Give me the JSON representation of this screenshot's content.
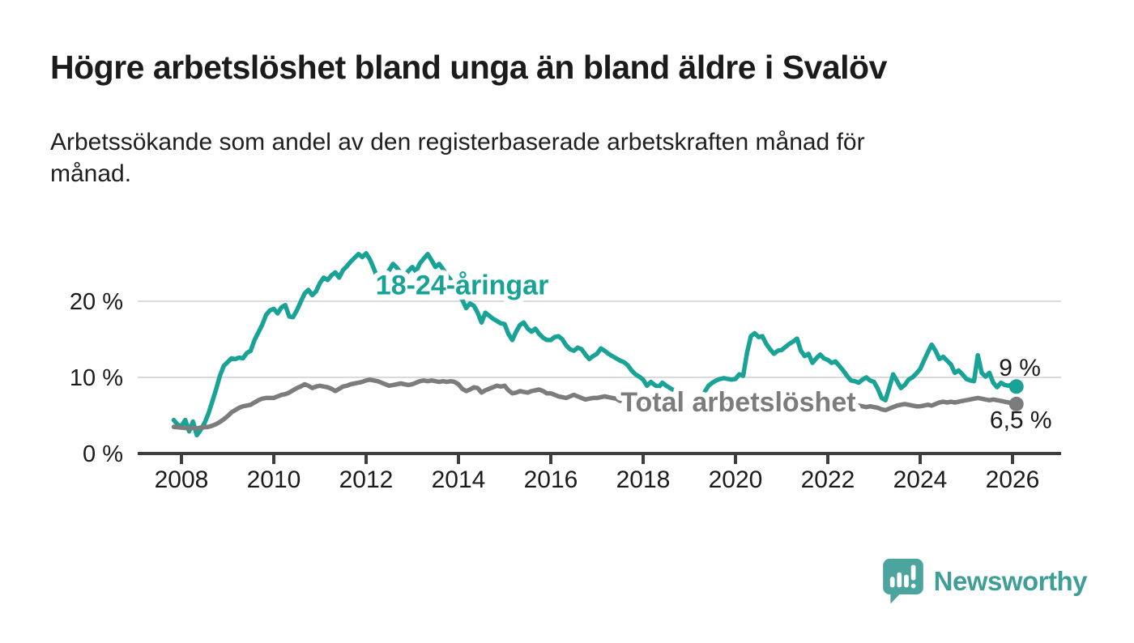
{
  "title": "Högre arbetslöshet bland unga än bland äldre i Svalöv",
  "subtitle_lines": [
    "Arbetssökande som andel av den registerbaserade arbetskraften månad för",
    "månad."
  ],
  "branding": {
    "name": "Newsworthy",
    "icon": "bar-chart-speech-bubble-icon",
    "bubble_color": "#4ba49d",
    "text_color": "#3f9e96"
  },
  "chart_data": {
    "type": "line",
    "x_unit": "year-month",
    "x_start": 2007.8333,
    "x_step": 0.0833333,
    "x_ticks": [
      2008,
      2010,
      2012,
      2014,
      2016,
      2018,
      2020,
      2022,
      2024,
      2026
    ],
    "y_ticks": [
      {
        "value": 0,
        "label": "0 %"
      },
      {
        "value": 10,
        "label": "10 %"
      },
      {
        "value": 20,
        "label": "20 %"
      }
    ],
    "ylim": [
      0,
      27.5
    ],
    "grid": "horizontal",
    "axis_color": "#3d3d3d",
    "grid_color": "#dadada",
    "tick_label_color": "#1b1b1b",
    "series": [
      {
        "name": "18-24-åringar",
        "color": "#18a396",
        "end_label": "9 %",
        "inline_label": {
          "text": "18-24-åringar",
          "year": 2014.08,
          "pct": 22.1
        },
        "end_label_pos": {
          "year": 2026.16,
          "pct": 11.3
        },
        "values": [
          4.4,
          3.8,
          3.6,
          4.4,
          2.9,
          4.2,
          2.4,
          3.1,
          4.0,
          5.2,
          6.8,
          8.4,
          10.2,
          11.5,
          12.0,
          12.5,
          12.4,
          12.6,
          12.5,
          13.2,
          13.5,
          14.9,
          15.9,
          16.9,
          18.2,
          18.8,
          19.0,
          18.4,
          19.2,
          19.5,
          18.0,
          17.9,
          18.8,
          19.9,
          21.0,
          21.5,
          20.8,
          21.3,
          22.4,
          23.1,
          22.8,
          23.4,
          23.8,
          23.1,
          24.1,
          24.6,
          25.2,
          25.7,
          26.2,
          25.8,
          26.3,
          25.5,
          24.3,
          23.0,
          22.3,
          23.4,
          24.1,
          24.9,
          24.4,
          23.7,
          23.3,
          24.0,
          24.5,
          23.9,
          25.0,
          25.6,
          26.2,
          25.4,
          24.5,
          24.9,
          24.2,
          23.4,
          22.8,
          21.6,
          20.7,
          20.2,
          19.1,
          19.7,
          19.4,
          18.5,
          17.2,
          18.5,
          18.1,
          17.7,
          17.4,
          17.1,
          17.0,
          15.7,
          14.9,
          16.0,
          16.9,
          17.2,
          16.4,
          16.0,
          16.4,
          15.7,
          15.2,
          14.9,
          14.9,
          15.3,
          15.4,
          15.0,
          14.2,
          13.7,
          13.5,
          13.9,
          13.7,
          13.0,
          12.4,
          12.8,
          13.1,
          13.8,
          13.5,
          13.1,
          12.8,
          12.5,
          12.2,
          12.0,
          11.6,
          10.9,
          10.4,
          10.1,
          9.7,
          8.9,
          9.4,
          9.0,
          8.7,
          9.3,
          8.9,
          8.6,
          8.3,
          8.5,
          8.2,
          8.1,
          null,
          null,
          null,
          null,
          8.1,
          8.9,
          9.3,
          9.6,
          9.8,
          9.9,
          9.8,
          9.7,
          9.8,
          10.4,
          10.2,
          13.2,
          15.4,
          15.8,
          15.3,
          15.4,
          14.4,
          13.7,
          13.1,
          13.5,
          13.6,
          14.0,
          14.4,
          14.7,
          15.1,
          13.5,
          12.8,
          13.1,
          11.9,
          12.5,
          13.0,
          12.5,
          12.3,
          11.9,
          12.1,
          11.5,
          10.9,
          10.2,
          9.6,
          9.5,
          9.3,
          9.7,
          10.0,
          9.6,
          9.4,
          8.5,
          7.3,
          7.0,
          8.7,
          10.4,
          9.5,
          8.6,
          9.0,
          9.7,
          10.0,
          10.5,
          11.1,
          12.2,
          13.3,
          14.3,
          13.5,
          12.4,
          12.7,
          12.2,
          11.7,
          10.6,
          10.9,
          10.4,
          9.8,
          9.6,
          9.5,
          12.9,
          10.6,
          10.1,
          10.6,
          9.3,
          8.7,
          9.3,
          9.0,
          8.9,
          9.1,
          8.8
        ]
      },
      {
        "name": "Total arbetslöshet",
        "color": "#7c7c7c",
        "end_label": "6,5 %",
        "inline_label": {
          "text": "Total arbetslöshet",
          "year": 2020.06,
          "pct": 6.7
        },
        "end_label_pos": {
          "year": 2026.18,
          "pct": 4.4
        },
        "values": [
          3.5,
          3.45,
          3.4,
          3.35,
          3.3,
          3.35,
          3.3,
          3.4,
          3.45,
          3.5,
          3.65,
          3.85,
          4.15,
          4.5,
          4.9,
          5.4,
          5.7,
          6.0,
          6.2,
          6.3,
          6.4,
          6.7,
          7.0,
          7.2,
          7.3,
          7.3,
          7.3,
          7.5,
          7.7,
          7.8,
          8.0,
          8.3,
          8.6,
          8.8,
          9.1,
          8.9,
          8.6,
          8.8,
          8.9,
          8.8,
          8.7,
          8.5,
          8.2,
          8.5,
          8.8,
          8.9,
          9.1,
          9.2,
          9.3,
          9.4,
          9.6,
          9.7,
          9.6,
          9.5,
          9.3,
          9.1,
          8.9,
          9.0,
          9.1,
          9.2,
          9.1,
          9.0,
          9.1,
          9.3,
          9.5,
          9.6,
          9.5,
          9.6,
          9.5,
          9.4,
          9.5,
          9.4,
          9.5,
          9.4,
          9.1,
          8.5,
          8.2,
          8.4,
          8.7,
          8.6,
          8.0,
          8.3,
          8.5,
          8.7,
          8.9,
          8.8,
          8.9,
          8.3,
          7.9,
          8.0,
          8.2,
          8.1,
          8.0,
          8.2,
          8.3,
          8.4,
          8.2,
          7.9,
          7.9,
          7.7,
          7.5,
          7.4,
          7.3,
          7.5,
          7.7,
          7.5,
          7.3,
          7.1,
          7.2,
          7.3,
          7.3,
          7.4,
          7.5,
          7.4,
          7.3,
          7.2,
          6.9,
          7.1,
          7.0,
          6.9,
          6.9,
          6.8,
          6.7,
          6.6,
          6.6,
          6.5,
          6.5,
          6.4,
          6.4,
          6.3,
          6.2,
          6.2,
          6.1,
          6.1,
          6.0,
          6.0,
          6.0,
          6.1,
          6.1,
          6.2,
          6.3,
          6.3,
          6.4,
          6.4,
          6.5,
          6.5,
          6.6,
          6.7,
          6.8,
          7.2,
          7.4,
          7.5,
          7.5,
          7.4,
          7.3,
          7.2,
          7.1,
          7.1,
          7.1,
          7.2,
          7.2,
          7.1,
          7.0,
          6.9,
          6.8,
          6.7,
          6.6,
          6.5,
          6.5,
          6.4,
          6.4,
          6.3,
          6.3,
          6.3,
          6.3,
          6.3,
          6.3,
          6.4,
          6.3,
          6.2,
          6.1,
          6.2,
          6.1,
          6.0,
          5.8,
          5.7,
          5.9,
          6.1,
          6.3,
          6.4,
          6.5,
          6.4,
          6.3,
          6.2,
          6.2,
          6.3,
          6.4,
          6.3,
          6.5,
          6.7,
          6.8,
          6.7,
          6.8,
          6.7,
          6.8,
          6.9,
          7.0,
          7.1,
          7.2,
          7.3,
          7.2,
          7.1,
          7.0,
          7.1,
          7.0,
          6.9,
          6.8,
          6.7,
          6.6,
          6.5
        ]
      }
    ]
  }
}
